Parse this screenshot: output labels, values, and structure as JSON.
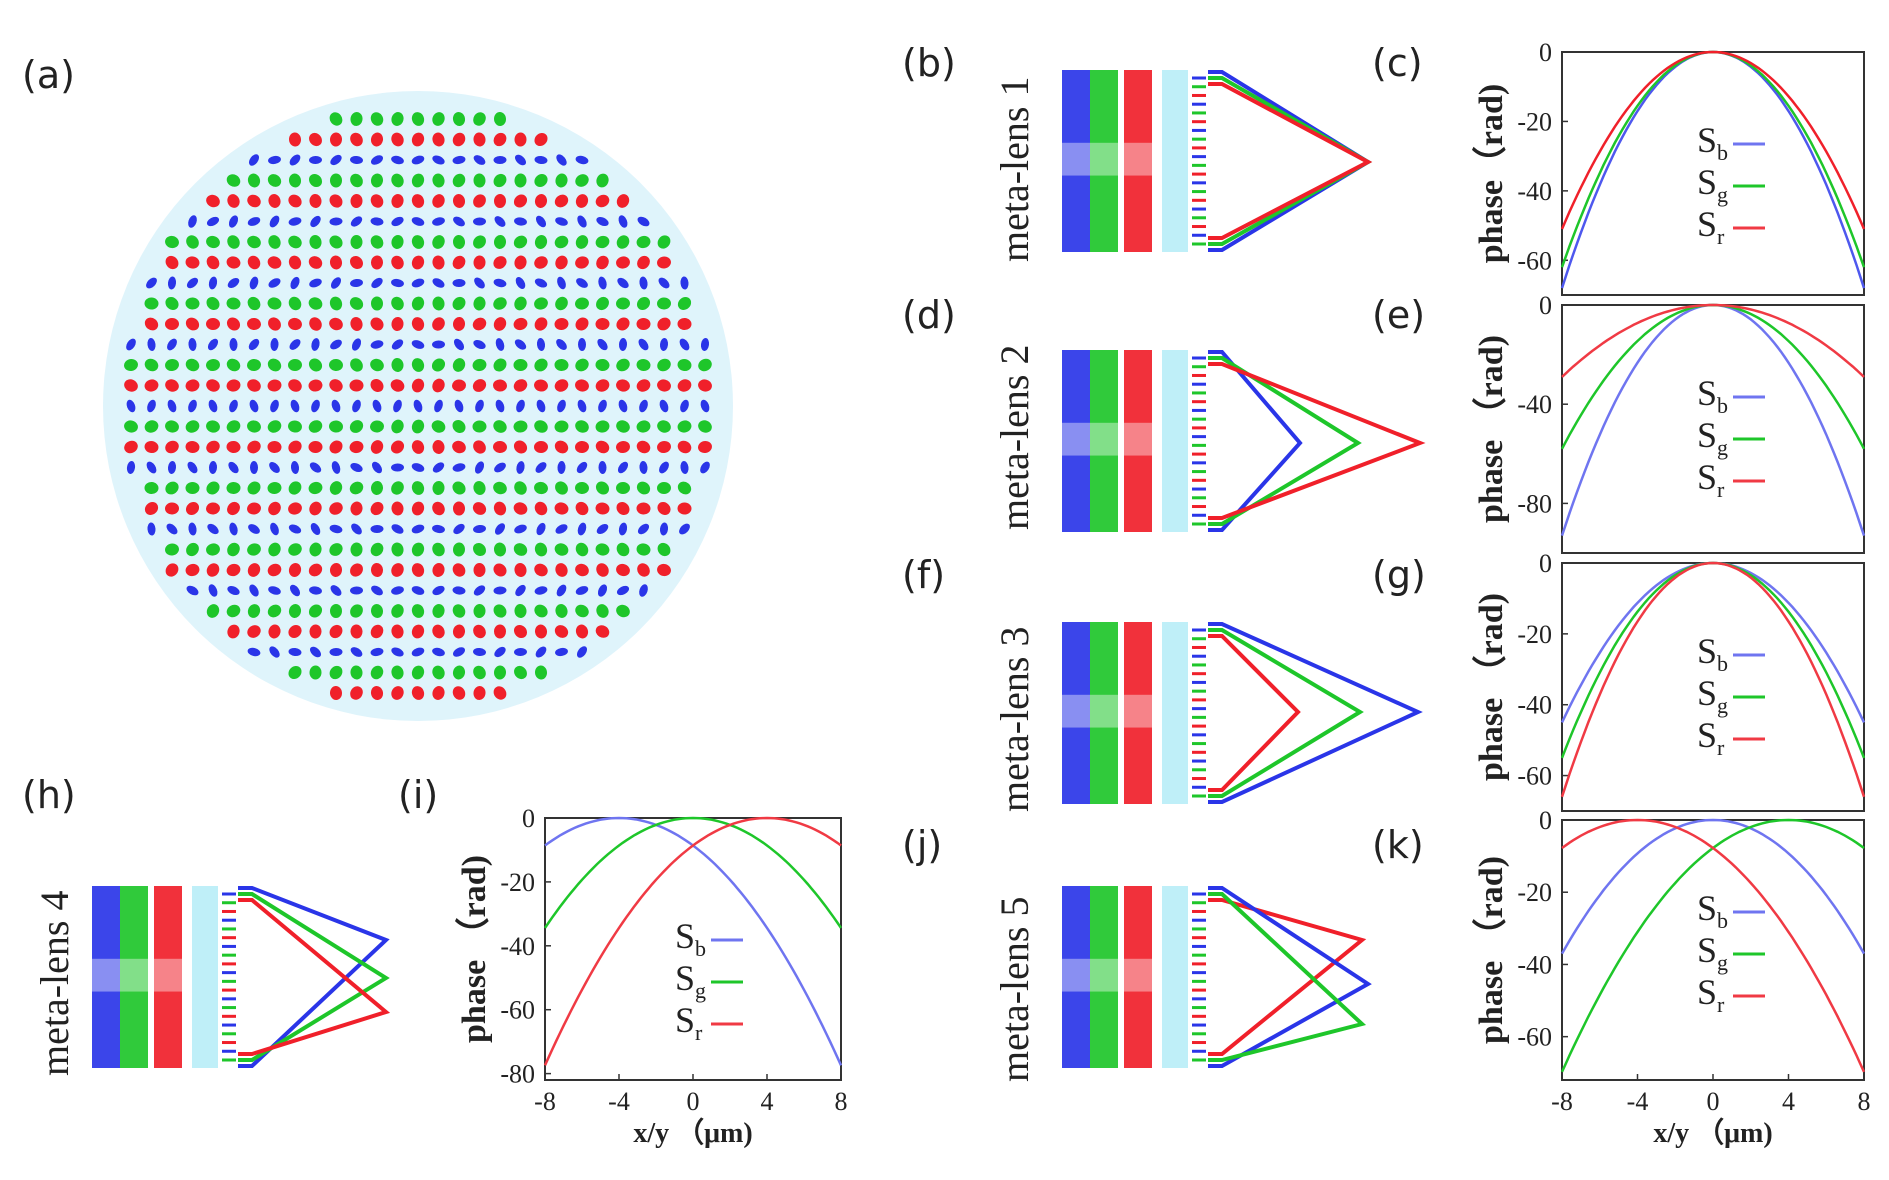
{
  "panel_labels": {
    "a": "(a)",
    "b": "(b)",
    "c": "(c)",
    "d": "(d)",
    "e": "(e)",
    "f": "(f)",
    "g": "(g)",
    "h": "(h)",
    "i": "(i)",
    "j": "(j)",
    "k": "(k)"
  },
  "lens_names": {
    "b": "meta-lens 1",
    "d": "meta-lens 2",
    "f": "meta-lens 3",
    "h": "meta-lens 4",
    "j": "meta-lens 5"
  },
  "colors": {
    "blue": "#2a35e8",
    "green": "#1ec62a",
    "red": "#f0202a",
    "bg_circle": "#dff4fb"
  },
  "legend": [
    {
      "base": "S",
      "sub": "b",
      "color": "#6f75f0"
    },
    {
      "base": "S",
      "sub": "g",
      "color": "#1ec62a"
    },
    {
      "base": "S",
      "sub": "r",
      "color": "#f03a44"
    }
  ],
  "axis_text": {
    "ylabel_c": "phase（rad)",
    "ylabel": "phase （rad)",
    "xlabel": "x/y （μm)"
  },
  "chart_data": [
    {
      "panel": "c",
      "type": "line",
      "xlim": [
        -8,
        8
      ],
      "ylim": [
        -70,
        0
      ],
      "yticks": [
        "0",
        "-20",
        "-40",
        "-60"
      ],
      "yticks_v": [
        0,
        -20,
        -40,
        -60
      ],
      "show_xticks": false,
      "series": [
        {
          "name": "Sb",
          "color": "#4e58ee",
          "center": 0,
          "end": -68
        },
        {
          "name": "Sg",
          "color": "#1ec62a",
          "center": 0,
          "end": -62
        },
        {
          "name": "Sr",
          "color": "#f0202a",
          "center": 0,
          "end": -51
        }
      ]
    },
    {
      "panel": "e",
      "type": "line",
      "xlim": [
        -8,
        8
      ],
      "ylim": [
        -100,
        0
      ],
      "yticks": [
        "0",
        "-40",
        "-80"
      ],
      "yticks_v": [
        0,
        -40,
        -80
      ],
      "show_xticks": false,
      "series": [
        {
          "name": "Sb",
          "color": "#6f75f0",
          "center": 0,
          "end": -93
        },
        {
          "name": "Sg",
          "color": "#1ec62a",
          "center": 0,
          "end": -58
        },
        {
          "name": "Sr",
          "color": "#f03a44",
          "center": 0,
          "end": -29
        }
      ]
    },
    {
      "panel": "g",
      "type": "line",
      "xlim": [
        -8,
        8
      ],
      "ylim": [
        -70,
        0
      ],
      "yticks": [
        "0",
        "-20",
        "-40",
        "-60"
      ],
      "yticks_v": [
        0,
        -20,
        -40,
        -60
      ],
      "show_xticks": false,
      "series": [
        {
          "name": "Sb",
          "color": "#6f75f0",
          "center": 0,
          "end": -45
        },
        {
          "name": "Sg",
          "color": "#1ec62a",
          "center": 0,
          "end": -55
        },
        {
          "name": "Sr",
          "color": "#f03a44",
          "center": 0,
          "end": -66
        }
      ]
    },
    {
      "panel": "i",
      "type": "line",
      "xlim": [
        -8,
        8
      ],
      "ylim": [
        -82,
        0
      ],
      "yticks": [
        "0",
        "-20",
        "-40",
        "-60",
        "-80"
      ],
      "yticks_v": [
        0,
        -20,
        -40,
        -60,
        -80
      ],
      "show_xticks": true,
      "xticks": [
        "-8",
        "-4",
        "0",
        "4",
        "8"
      ],
      "xticks_v": [
        -8,
        -4,
        0,
        4,
        8
      ],
      "series": [
        {
          "name": "Sb",
          "color": "#6f75f0",
          "center": -4,
          "k": 0.5376
        },
        {
          "name": "Sg",
          "color": "#1ec62a",
          "center": 0,
          "k": 0.5376
        },
        {
          "name": "Sr",
          "color": "#f03a44",
          "center": 4,
          "k": 0.5376
        }
      ]
    },
    {
      "panel": "k",
      "type": "line",
      "xlim": [
        -8,
        8
      ],
      "ylim": [
        -72,
        0
      ],
      "yticks": [
        "0",
        "-20",
        "-40",
        "-60"
      ],
      "yticks_v": [
        0,
        -20,
        -40,
        -60
      ],
      "show_xticks": true,
      "xticks": [
        "-8",
        "-4",
        "0",
        "4",
        "8"
      ],
      "xticks_v": [
        -8,
        -4,
        0,
        4,
        8
      ],
      "series": [
        {
          "name": "Sb",
          "color": "#6f75f0",
          "center": 0,
          "end": -37
        },
        {
          "name": "Sg",
          "color": "#1ec62a",
          "center": 4,
          "k": 0.4844
        },
        {
          "name": "Sr",
          "color": "#f03a44",
          "center": -4,
          "k": 0.4844
        }
      ]
    }
  ]
}
